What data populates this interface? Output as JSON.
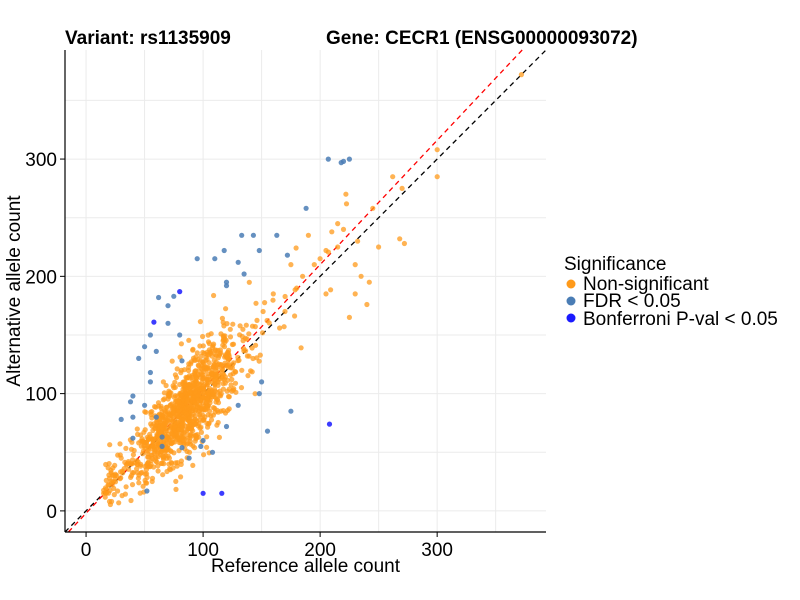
{
  "title_left": "Variant: rs1135909",
  "title_right": "Gene: CECR1 (ENSG00000093072)",
  "colors": {
    "non_significant": "#ff9a1a",
    "fdr": "#4a7db5",
    "bonferroni": "#1a1aff",
    "line_red": "#ff0000",
    "line_black": "#000000"
  },
  "chart_data": {
    "type": "scatter",
    "xlabel": "Reference allele count",
    "ylabel": "Alternative allele count",
    "xlim": [
      -18,
      393
    ],
    "ylim": [
      -18,
      393
    ],
    "xticks": [
      0,
      100,
      200,
      300
    ],
    "yticks": [
      0,
      100,
      200,
      300
    ],
    "grid": true,
    "legend": {
      "title": "Significance",
      "position": "right",
      "entries": [
        "Non-significant",
        "FDR < 0.05",
        "Bonferroni P-val < 0.05"
      ]
    },
    "reference_lines": [
      {
        "name": "identity",
        "style": "dashed",
        "color": "#000000",
        "slope": 1.0,
        "intercept": 0
      },
      {
        "name": "fit",
        "style": "dashed",
        "color": "#ff0000",
        "slope": 1.06,
        "intercept": -2
      }
    ],
    "series": [
      {
        "name": "Non-significant",
        "cloud": {
          "n": 1100,
          "x_center": 85,
          "x_spread": 28,
          "slope": 1.02,
          "y_noise": 18,
          "x_min": 15,
          "x_max": 260
        },
        "points": [
          [
            372,
            372
          ],
          [
            300,
            308
          ],
          [
            300,
            285
          ],
          [
            268,
            232
          ],
          [
            272,
            228
          ],
          [
            242,
            195
          ],
          [
            232,
            230
          ],
          [
            215,
            245
          ],
          [
            222,
            270
          ],
          [
            245,
            258
          ],
          [
            262,
            285
          ],
          [
            270,
            275
          ],
          [
            210,
            238
          ],
          [
            190,
            235
          ],
          [
            230,
            210
          ],
          [
            225,
            165
          ],
          [
            240,
            176
          ],
          [
            205,
            222
          ],
          [
            250,
            225
          ],
          [
            220,
            240
          ],
          [
            15,
            15
          ],
          [
            20,
            8
          ],
          [
            25,
            30
          ],
          [
            30,
            45
          ],
          [
            35,
            40
          ],
          [
            180,
            190
          ],
          [
            175,
            210
          ],
          [
            195,
            210
          ],
          [
            185,
            200
          ],
          [
            170,
            170
          ],
          [
            160,
            185
          ],
          [
            200,
            215
          ],
          [
            215,
            225
          ],
          [
            235,
            200
          ],
          [
            205,
            185
          ],
          [
            230,
            185
          ]
        ]
      },
      {
        "name": "FDR < 0.05",
        "points": [
          [
            207,
            300
          ],
          [
            220,
            298
          ],
          [
            218,
            297
          ],
          [
            225,
            300
          ],
          [
            188,
            258
          ],
          [
            143,
            235
          ],
          [
            163,
            235
          ],
          [
            133,
            235
          ],
          [
            118,
            222
          ],
          [
            110,
            215
          ],
          [
            95,
            215
          ],
          [
            130,
            212
          ],
          [
            148,
            222
          ],
          [
            172,
            218
          ],
          [
            135,
            202
          ],
          [
            120,
            195
          ],
          [
            120,
            192
          ],
          [
            75,
            183
          ],
          [
            62,
            182
          ],
          [
            70,
            175
          ],
          [
            82,
            128
          ],
          [
            55,
            150
          ],
          [
            50,
            140
          ],
          [
            45,
            130
          ],
          [
            55,
            118
          ],
          [
            40,
            98
          ],
          [
            38,
            93
          ],
          [
            30,
            78
          ],
          [
            40,
            80
          ],
          [
            50,
            90
          ],
          [
            60,
            80
          ],
          [
            65,
            63
          ],
          [
            82,
            54
          ],
          [
            100,
            60
          ],
          [
            120,
            72
          ],
          [
            155,
            68
          ],
          [
            150,
            110
          ],
          [
            175,
            85
          ],
          [
            148,
            100
          ],
          [
            130,
            90
          ],
          [
            65,
            55
          ],
          [
            52,
            17
          ],
          [
            108,
            50
          ],
          [
            88,
            45
          ],
          [
            40,
            62
          ],
          [
            55,
            110
          ],
          [
            60,
            136
          ],
          [
            80,
            150
          ],
          [
            70,
            160
          ],
          [
            98,
            55
          ]
        ]
      },
      {
        "name": "Bonferroni P-val < 0.05",
        "points": [
          [
            80,
            187
          ],
          [
            58,
            161
          ],
          [
            208,
            74
          ],
          [
            100,
            15
          ],
          [
            116,
            15
          ]
        ]
      }
    ]
  }
}
